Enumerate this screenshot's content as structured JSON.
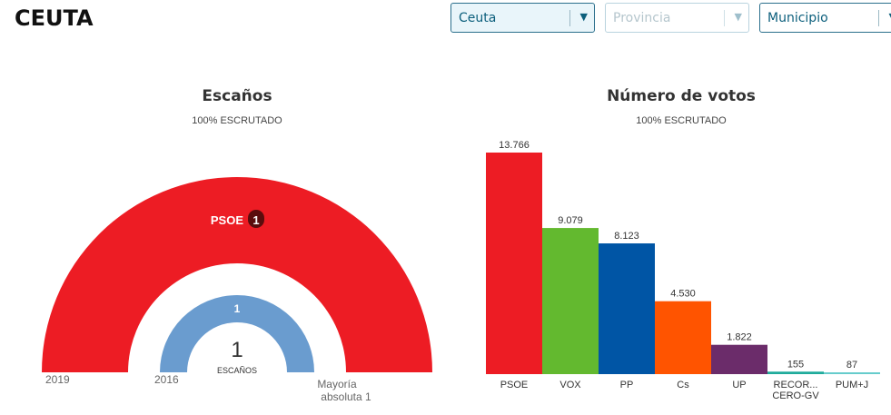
{
  "header": {
    "title": "CEUTA"
  },
  "filters": {
    "region": {
      "value": "Ceuta"
    },
    "province": {
      "placeholder": "Provincia"
    },
    "municipality": {
      "placeholder": "Municipio"
    }
  },
  "seats_chart": {
    "title": "Escaños",
    "subtitle": "100% ESCRUTADO",
    "outer_year": "2019",
    "inner_year": "2016",
    "majority_label_1": "Mayoría",
    "majority_label_2": "absoluta 1",
    "center_value": "1",
    "center_label": "ESCAÑOS",
    "outer": {
      "party": "PSOE",
      "seats": "1",
      "color": "#ed1c24",
      "badge_color": "#5a0d0d"
    },
    "inner": {
      "seats": "1",
      "color": "#6a9ccf"
    }
  },
  "votes_chart": {
    "title": "Número de votos",
    "subtitle": "100% ESCRUTADO"
  },
  "chart_data": [
    {
      "type": "pie",
      "title": "Escaños",
      "subtitle": "100% ESCRUTADO",
      "series": [
        {
          "name": "2019",
          "slices": [
            {
              "party": "PSOE",
              "value": 1,
              "color": "#ed1c24"
            }
          ]
        },
        {
          "name": "2016",
          "slices": [
            {
              "party": "",
              "value": 1,
              "color": "#6a9ccf"
            }
          ]
        }
      ]
    },
    {
      "type": "bar",
      "title": "Número de votos",
      "subtitle": "100% ESCRUTADO",
      "categories": [
        "PSOE",
        "VOX",
        "PP",
        "Cs",
        "UP",
        "RECOR... CERO-GV",
        "PUM+J"
      ],
      "category_lines": [
        [
          "PSOE"
        ],
        [
          "VOX"
        ],
        [
          "PP"
        ],
        [
          "Cs"
        ],
        [
          "UP"
        ],
        [
          "RECOR...",
          "CERO-GV"
        ],
        [
          "PUM+J"
        ]
      ],
      "values": [
        13766,
        9079,
        8123,
        4530,
        1822,
        155,
        87
      ],
      "value_labels": [
        "13.766",
        "9.079",
        "8.123",
        "4.530",
        "1.822",
        "155",
        "87"
      ],
      "colors": [
        "#ed1c24",
        "#63b92f",
        "#0055a5",
        "#ff5400",
        "#6b2c6a",
        "#1fab9b",
        "#66cccc"
      ],
      "ylim": [
        0,
        13766
      ]
    }
  ]
}
